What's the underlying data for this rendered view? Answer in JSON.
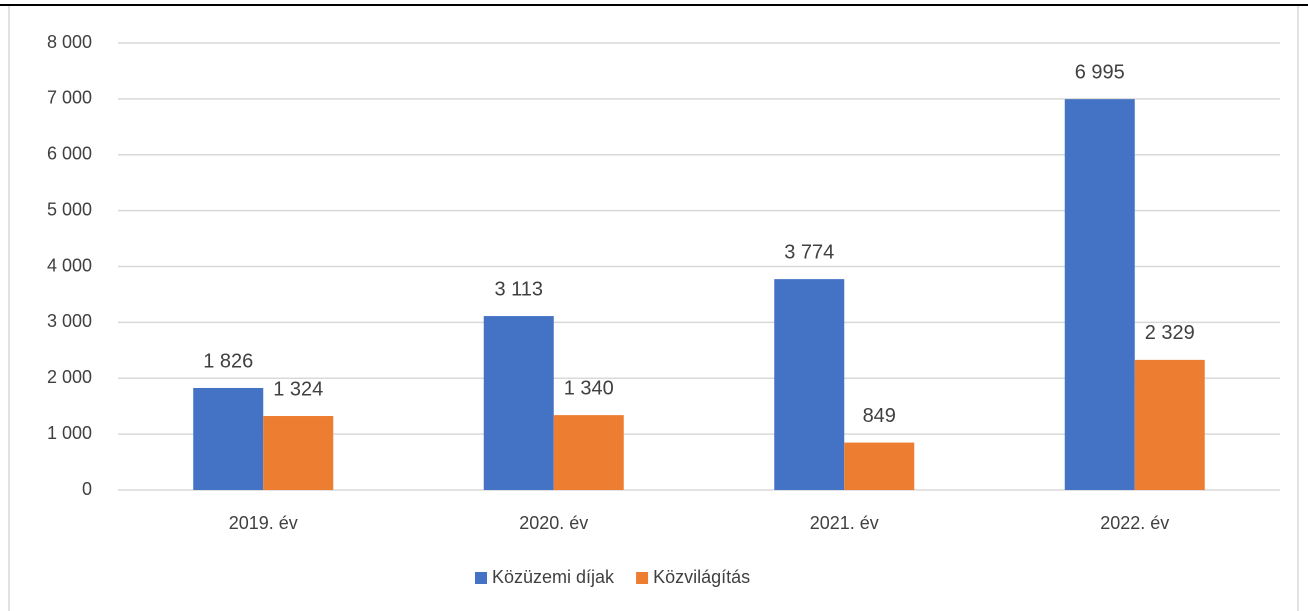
{
  "chart_data": {
    "type": "bar",
    "categories": [
      "2019. év",
      "2020. év",
      "2021. év",
      "2022. év"
    ],
    "series": [
      {
        "name": "Közüzemi díjak",
        "color": "#4472c4",
        "values": [
          1826,
          3113,
          3774,
          6995
        ],
        "value_labels": [
          "1 826",
          "3 113",
          "3 774",
          "6 995"
        ]
      },
      {
        "name": "Közvilágítás",
        "color": "#ed7d31",
        "values": [
          1324,
          1340,
          849,
          2329
        ],
        "value_labels": [
          "1 324",
          "1 340",
          "849",
          "2 329"
        ]
      }
    ],
    "ylim": [
      0,
      8000
    ],
    "yticks": [
      0,
      {
        "value": 1000,
        "label": "1 000"
      },
      {
        "value": 2000,
        "label": "2 000"
      },
      {
        "value": 3000,
        "label": "3 000"
      },
      {
        "value": 4000,
        "label": "4 000"
      },
      {
        "value": 5000,
        "label": "5 000"
      },
      {
        "value": 6000,
        "label": "6 000"
      },
      {
        "value": 7000,
        "label": "7 000"
      },
      {
        "value": 8000,
        "label": "8 000"
      }
    ],
    "grid": true,
    "legend": "bottom"
  }
}
